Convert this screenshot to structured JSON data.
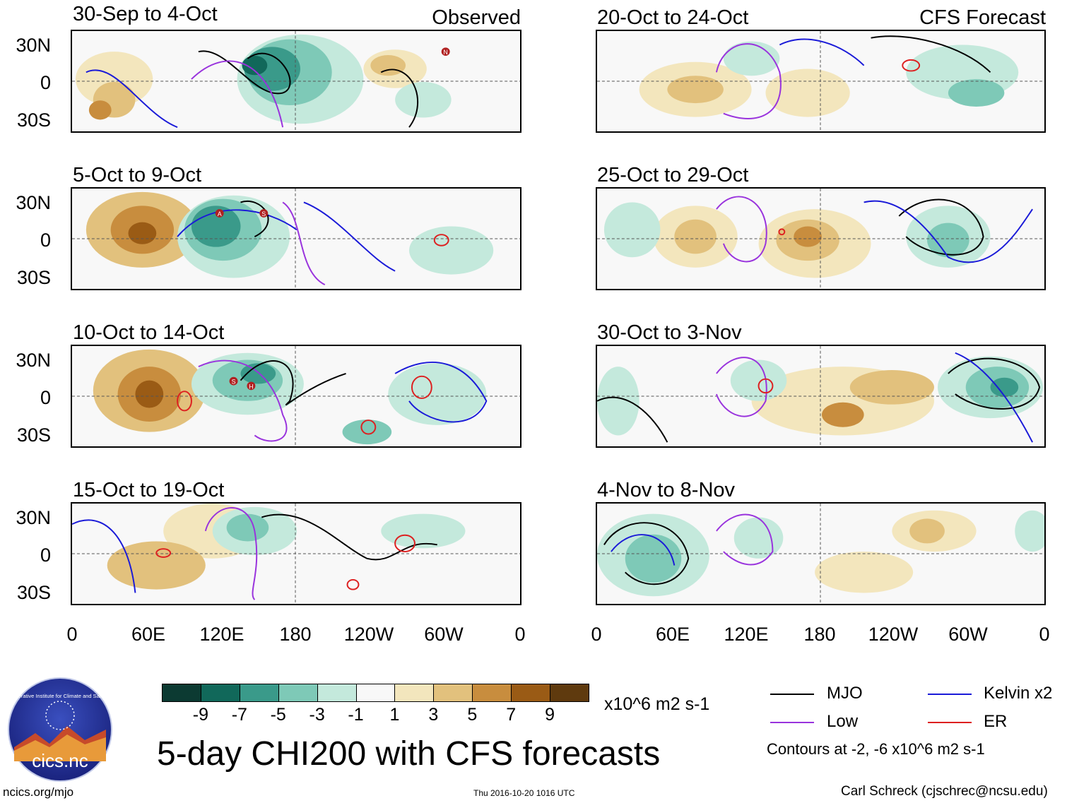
{
  "observed_label": "Observed",
  "forecast_label": "CFS Forecast",
  "lat_labels": [
    "30N",
    "0",
    "30S"
  ],
  "lon_labels": [
    "0",
    "60E",
    "120E",
    "180",
    "120W",
    "60W",
    "0"
  ],
  "panels_left": [
    {
      "title": "30-Sep to 4-Oct",
      "markers": [
        "N"
      ]
    },
    {
      "title": "5-Oct to 9-Oct",
      "markers": [
        "A",
        "S"
      ]
    },
    {
      "title": "10-Oct to 14-Oct",
      "markers": [
        "S",
        "H"
      ]
    },
    {
      "title": "15-Oct to 19-Oct",
      "markers": []
    }
  ],
  "panels_right": [
    {
      "title": "20-Oct to 24-Oct"
    },
    {
      "title": "25-Oct to 29-Oct"
    },
    {
      "title": "30-Oct to 3-Nov"
    },
    {
      "title": "4-Nov to 8-Nov"
    }
  ],
  "colorbar": {
    "colors": [
      "#0c3a32",
      "#11685a",
      "#3a9a8a",
      "#7ec9b7",
      "#c4e9dc",
      "#f8f8f8",
      "#f3e6bd",
      "#e2c17d",
      "#c88d3e",
      "#9a5b15",
      "#5f3a0e"
    ],
    "labels": [
      "-9",
      "-7",
      "-5",
      "-3",
      "-1",
      "1",
      "3",
      "5",
      "7",
      "9"
    ],
    "units": "x10^6 m2 s-1"
  },
  "legend": [
    {
      "label": "MJO",
      "color": "#000000"
    },
    {
      "label": "Kelvin x2",
      "color": "#1a1ad8"
    },
    {
      "label": "Low",
      "color": "#9933dd"
    },
    {
      "label": "ER",
      "color": "#dd2020"
    }
  ],
  "contours_note": "Contours at -2, -6 x10^6 m2 s-1",
  "main_title": "5-day CHI200 with CFS forecasts",
  "logo": {
    "text": "cics.nc",
    "ring_text": "Cooperative Institute for Climate and Satellites"
  },
  "footer": {
    "left": "ncics.org/mjo",
    "center": "Thu 2016-10-20 1016 UTC",
    "right": "Carl Schreck (cjschrec@ncsu.edu)"
  }
}
